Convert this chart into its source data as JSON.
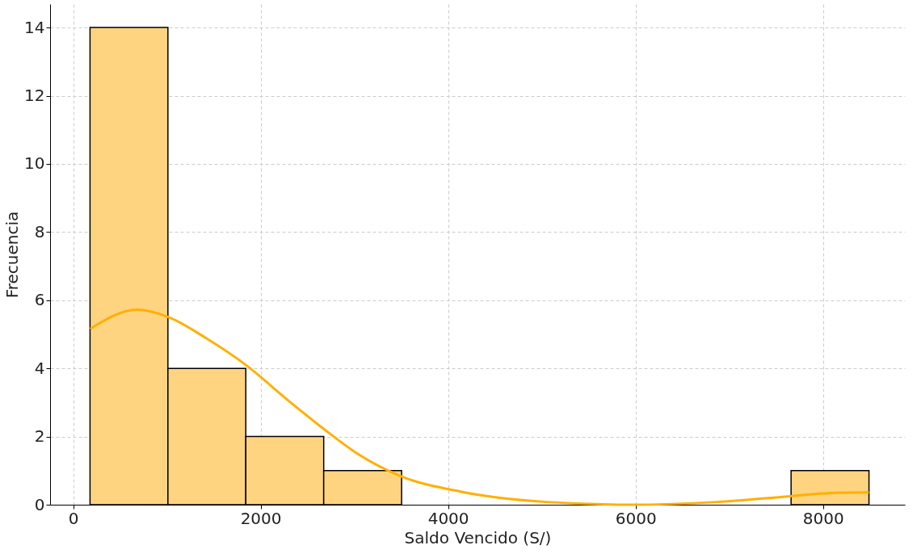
{
  "chart_data": {
    "type": "histogram",
    "xlabel": "Saldo Vencido (S/)",
    "ylabel": "Frecuencia",
    "bins": [
      180,
      1011,
      1842,
      2673,
      3504,
      4335,
      5166,
      5997,
      6828,
      7659,
      8490
    ],
    "values": [
      14,
      4,
      2,
      1,
      0,
      0,
      0,
      0,
      0,
      1
    ],
    "color": "#fed480",
    "series": [
      {
        "type": "line",
        "color": "#ffb000",
        "x": [
          182,
          683,
          1010,
          1411,
          1847,
          2320,
          2666,
          3049,
          3494,
          4140,
          5050,
          5960,
          6870,
          7653,
          8145,
          8490
        ],
        "values": [
          5.16,
          5.72,
          5.51,
          4.9,
          4.09,
          3.0,
          2.24,
          1.47,
          0.84,
          0.38,
          0.08,
          0.0,
          0.08,
          0.25,
          0.35,
          0.36
        ]
      }
    ],
    "xlim": [
      -246,
      8873
    ],
    "ylim": [
      0,
      14.69
    ],
    "xticks": [
      0,
      2000,
      4000,
      6000,
      8000
    ],
    "yticks": [
      0,
      2,
      4,
      6,
      8,
      10,
      12,
      14
    ],
    "grid": true,
    "line_style": "solid",
    "marker": "none"
  }
}
